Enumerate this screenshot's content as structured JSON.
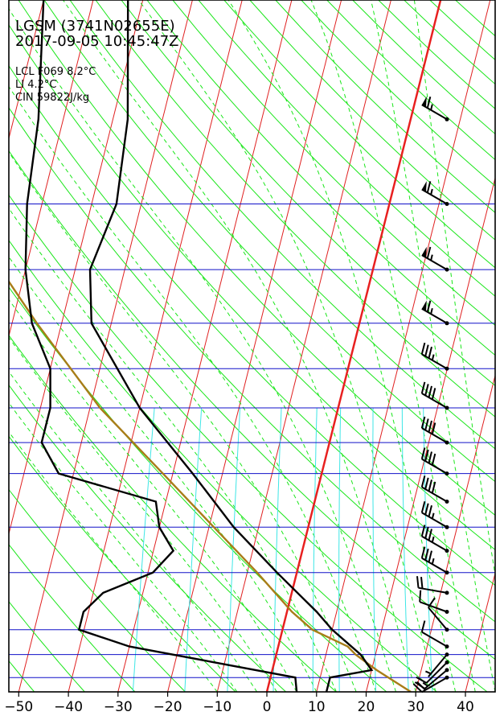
{
  "header": {
    "station": "LGSM (3741N02655E)",
    "datetime": "2017-09-05 10:45:47Z",
    "lcl": "LCL F069 8.2°C",
    "li": "LI 4.2°C",
    "cin": "CIN 59822J/kg"
  },
  "chart_data": {
    "type": "skew-t",
    "x_ticks": [
      -50,
      -40,
      -30,
      -20,
      -10,
      0,
      10,
      20,
      30,
      40
    ],
    "xlim": [
      -52,
      46
    ],
    "isobar_levels_hpa": [
      1000,
      925,
      850,
      700,
      600,
      500,
      450,
      400,
      350,
      300,
      250,
      200
    ],
    "ylim_hpa": [
      1050,
      100
    ],
    "grid": true,
    "colors": {
      "isobar": "#1010c8",
      "isotherm": "#e02020",
      "dry_adiabat": "#19e619",
      "moist_adiabat": "#19e619",
      "mixing_ratio": "#3de6e6",
      "temperature": "#000000",
      "dewpoint": "#000000",
      "parcel": "#a87d18",
      "zero_isotherm": "#e82020"
    },
    "temperature_profile": [
      {
        "p": 1050,
        "t": 12
      },
      {
        "p": 1000,
        "t": 12
      },
      {
        "p": 975,
        "t": 20
      },
      {
        "p": 925,
        "t": 17
      },
      {
        "p": 850,
        "t": 10
      },
      {
        "p": 800,
        "t": 6
      },
      {
        "p": 700,
        "t": -4
      },
      {
        "p": 600,
        "t": -15
      },
      {
        "p": 500,
        "t": -26
      },
      {
        "p": 400,
        "t": -40
      },
      {
        "p": 300,
        "t": -54
      },
      {
        "p": 250,
        "t": -57
      },
      {
        "p": 200,
        "t": -55
      },
      {
        "p": 150,
        "t": -57
      },
      {
        "p": 100,
        "t": -63
      }
    ],
    "dewpoint_profile": [
      {
        "p": 1050,
        "t": 6
      },
      {
        "p": 1000,
        "t": 5
      },
      {
        "p": 950,
        "t": -12
      },
      {
        "p": 900,
        "t": -30
      },
      {
        "p": 850,
        "t": -41
      },
      {
        "p": 800,
        "t": -41
      },
      {
        "p": 750,
        "t": -38
      },
      {
        "p": 700,
        "t": -29
      },
      {
        "p": 650,
        "t": -26
      },
      {
        "p": 600,
        "t": -30
      },
      {
        "p": 550,
        "t": -32
      },
      {
        "p": 500,
        "t": -53
      },
      {
        "p": 450,
        "t": -58
      },
      {
        "p": 400,
        "t": -58
      },
      {
        "p": 350,
        "t": -60
      },
      {
        "p": 300,
        "t": -66
      },
      {
        "p": 250,
        "t": -70
      },
      {
        "p": 200,
        "t": -73
      },
      {
        "p": 150,
        "t": -75
      },
      {
        "p": 100,
        "t": -80
      }
    ],
    "parcel_profile": [
      {
        "p": 1050,
        "t": 29
      },
      {
        "p": 975,
        "t": 21
      },
      {
        "p": 925,
        "t": 16
      },
      {
        "p": 900,
        "t": 14
      },
      {
        "p": 850,
        "t": 6
      },
      {
        "p": 800,
        "t": 1
      },
      {
        "p": 700,
        "t": -8
      },
      {
        "p": 600,
        "t": -19
      },
      {
        "p": 500,
        "t": -32
      },
      {
        "p": 400,
        "t": -48
      },
      {
        "p": 300,
        "t": -65
      },
      {
        "p": 250,
        "t": -75
      },
      {
        "p": 200,
        "t": -86
      },
      {
        "p": 150,
        "t": -98
      },
      {
        "p": 100,
        "t": -110
      }
    ],
    "wind_barbs": [
      {
        "p": 1000,
        "direction": 240,
        "speed": 20
      },
      {
        "p": 975,
        "direction": 230,
        "speed": 15
      },
      {
        "p": 950,
        "direction": 225,
        "speed": 10
      },
      {
        "p": 925,
        "direction": 220,
        "speed": 5
      },
      {
        "p": 900,
        "direction": 300,
        "speed": 10
      },
      {
        "p": 850,
        "direction": 320,
        "speed": 10
      },
      {
        "p": 800,
        "direction": 290,
        "speed": 10
      },
      {
        "p": 750,
        "direction": 280,
        "speed": 20
      },
      {
        "p": 700,
        "direction": 300,
        "speed": 35
      },
      {
        "p": 650,
        "direction": 300,
        "speed": 35
      },
      {
        "p": 600,
        "direction": 300,
        "speed": 35
      },
      {
        "p": 550,
        "direction": 300,
        "speed": 40
      },
      {
        "p": 500,
        "direction": 300,
        "speed": 40
      },
      {
        "p": 450,
        "direction": 300,
        "speed": 40
      },
      {
        "p": 400,
        "direction": 300,
        "speed": 40
      },
      {
        "p": 350,
        "direction": 300,
        "speed": 35
      },
      {
        "p": 300,
        "direction": 300,
        "speed": 65
      },
      {
        "p": 250,
        "direction": 300,
        "speed": 65
      },
      {
        "p": 200,
        "direction": 300,
        "speed": 65
      },
      {
        "p": 150,
        "direction": 300,
        "speed": 65
      }
    ]
  }
}
